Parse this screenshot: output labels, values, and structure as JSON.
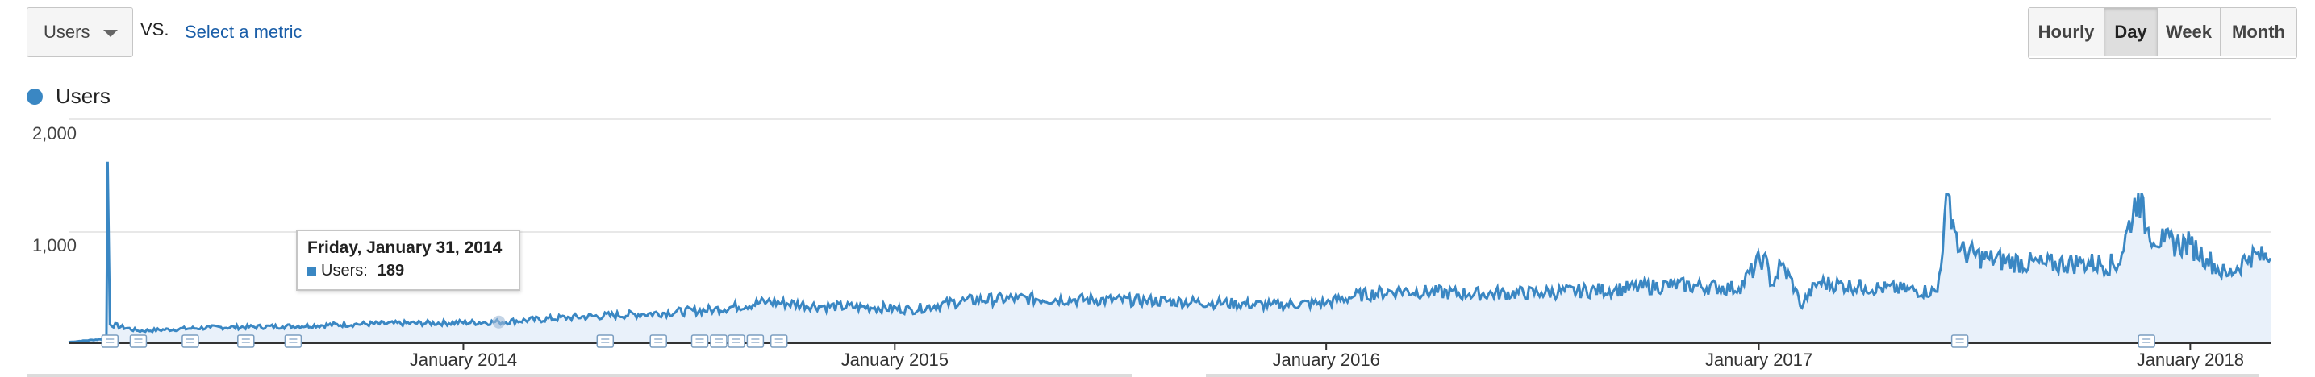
{
  "toolbar": {
    "metric_select": "Users",
    "vs_label": "VS.",
    "select_metric_link": "Select a metric",
    "granularity": [
      {
        "label": "Hourly",
        "active": false
      },
      {
        "label": "Day",
        "active": true
      },
      {
        "label": "Week",
        "active": false
      },
      {
        "label": "Month",
        "active": false
      }
    ]
  },
  "legend": {
    "label": "Users",
    "color": "#3a87c3"
  },
  "tooltip": {
    "date": "Friday, January 31, 2014",
    "series_label": "Users:",
    "value": "189"
  },
  "chart_data": {
    "type": "area",
    "series": [
      {
        "name": "Users",
        "color": "#3a87c3",
        "points": [
          [
            "2013-02-01",
            10
          ],
          [
            "2013-03-05",
            40
          ],
          [
            "2013-03-06",
            1620
          ],
          [
            "2013-03-08",
            170
          ],
          [
            "2013-04-01",
            110
          ],
          [
            "2013-06-01",
            140
          ],
          [
            "2013-08-01",
            150
          ],
          [
            "2013-10-01",
            170
          ],
          [
            "2014-01-31",
            189
          ],
          [
            "2014-04-01",
            230
          ],
          [
            "2014-06-01",
            260
          ],
          [
            "2014-08-01",
            300
          ],
          [
            "2014-09-15",
            370
          ],
          [
            "2014-11-01",
            330
          ],
          [
            "2014-12-15",
            320
          ],
          [
            "2015-01-15",
            300
          ],
          [
            "2015-03-01",
            380
          ],
          [
            "2015-04-15",
            400
          ],
          [
            "2015-06-01",
            390
          ],
          [
            "2015-08-01",
            380
          ],
          [
            "2015-10-01",
            360
          ],
          [
            "2015-11-15",
            340
          ],
          [
            "2016-01-01",
            360
          ],
          [
            "2016-01-25",
            420
          ],
          [
            "2016-03-01",
            470
          ],
          [
            "2016-05-01",
            440
          ],
          [
            "2016-07-01",
            450
          ],
          [
            "2016-09-01",
            480
          ],
          [
            "2016-10-20",
            520
          ],
          [
            "2016-12-15",
            490
          ],
          [
            "2017-01-05",
            780
          ],
          [
            "2017-01-12",
            520
          ],
          [
            "2017-01-20",
            700
          ],
          [
            "2017-02-01",
            490
          ],
          [
            "2017-02-05",
            330
          ],
          [
            "2017-02-20",
            540
          ],
          [
            "2017-04-01",
            500
          ],
          [
            "2017-06-01",
            460
          ],
          [
            "2017-06-10",
            1330
          ],
          [
            "2017-06-20",
            820
          ],
          [
            "2017-07-15",
            750
          ],
          [
            "2017-09-01",
            700
          ],
          [
            "2017-10-01",
            720
          ],
          [
            "2017-11-01",
            700
          ],
          [
            "2017-11-18",
            1340
          ],
          [
            "2017-11-25",
            1020
          ],
          [
            "2017-12-10",
            900
          ],
          [
            "2018-01-01",
            880
          ],
          [
            "2018-01-15",
            760
          ],
          [
            "2018-02-01",
            600
          ],
          [
            "2018-02-20",
            780
          ],
          [
            "2018-03-10",
            760
          ]
        ]
      }
    ],
    "y_ticks": [
      "2,000",
      "1,000"
    ],
    "ylim": [
      0,
      2000
    ],
    "x_ticks": [
      {
        "date": "2014-01-01",
        "label": "January 2014"
      },
      {
        "date": "2015-01-01",
        "label": "January 2015"
      },
      {
        "date": "2016-01-01",
        "label": "January 2016"
      },
      {
        "date": "2017-01-01",
        "label": "January 2017"
      },
      {
        "date": "2018-01-01",
        "label": "January 2018"
      }
    ],
    "x_range": [
      "2013-02-01",
      "2018-03-10"
    ],
    "annotations": [
      "2013-03-08",
      "2013-04-01",
      "2013-05-15",
      "2013-07-01",
      "2013-08-10",
      "2014-05-01",
      "2014-06-15",
      "2014-07-20",
      "2014-08-05",
      "2014-08-20",
      "2014-09-05",
      "2014-09-25",
      "2017-06-20",
      "2017-11-25"
    ],
    "grid": true
  }
}
